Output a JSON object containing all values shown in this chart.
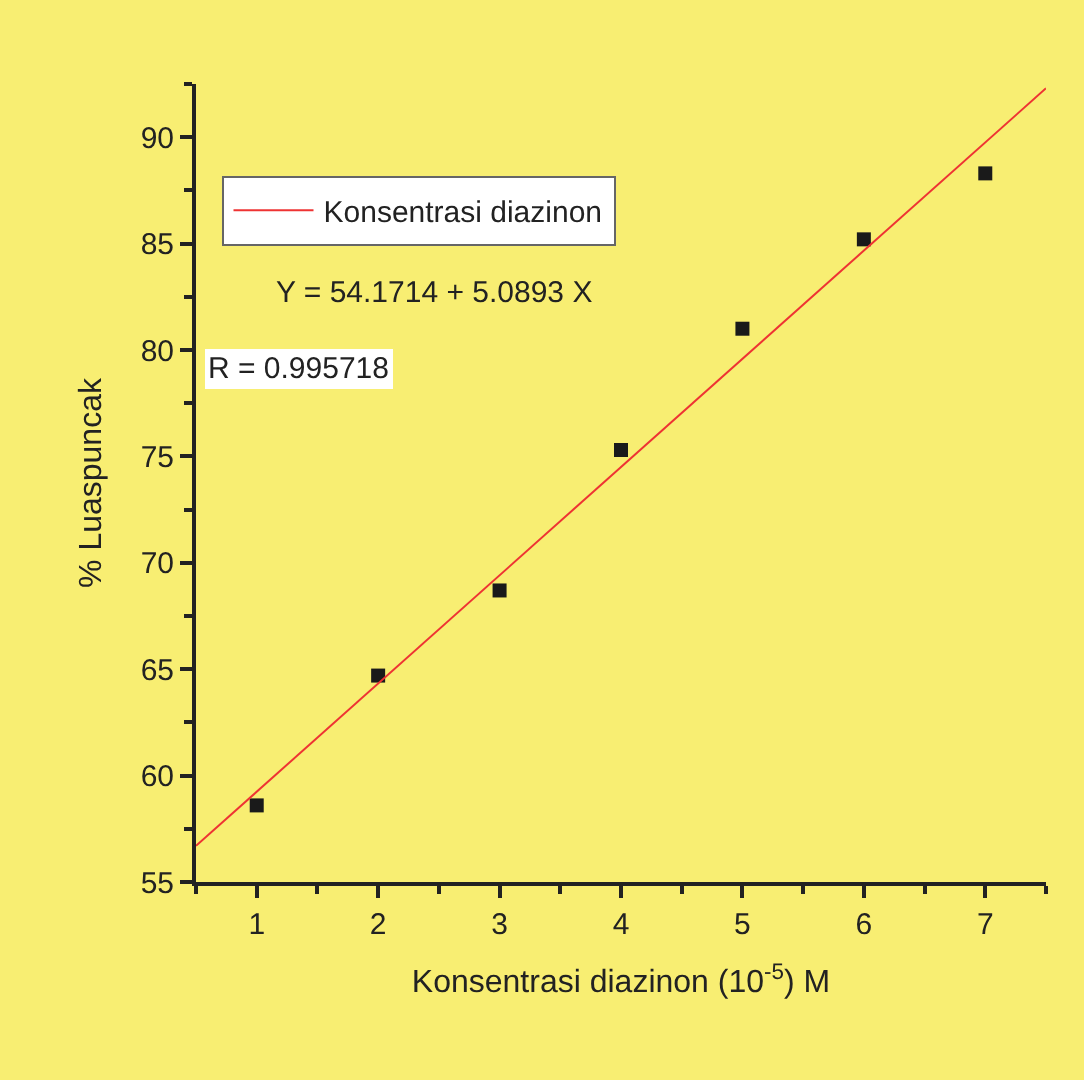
{
  "chart_data": {
    "type": "scatter",
    "xlabel": "Konsentrasi diazinon (10$^{-5}$) M",
    "ylabel": "% Luaspuncak",
    "series": [
      {
        "color": "#1a1a1a",
        "marker": "square",
        "x": [
          1,
          2,
          3,
          4,
          5,
          6,
          7
        ],
        "values": [
          58.6,
          64.7,
          68.7,
          75.3,
          81.0,
          85.2,
          88.3
        ]
      },
      {
        "type": "line",
        "name": "Konsentrasi diazinon",
        "color": "#ee3333",
        "line_style": "solid",
        "x": [
          0.5,
          7.5
        ],
        "values": [
          56.7,
          92.3
        ]
      }
    ],
    "annotations": [
      "Y = 54.1714 + 5.0893 X",
      "R = 0.995718"
    ],
    "xlim": [
      0.5,
      7.5
    ],
    "xticks": [
      1,
      2,
      3,
      4,
      5,
      6,
      7
    ],
    "ylim": [
      55,
      92.5
    ],
    "yticks": [
      55,
      60,
      65,
      70,
      75,
      80,
      85,
      90
    ],
    "grid": false,
    "legend": "top left"
  }
}
